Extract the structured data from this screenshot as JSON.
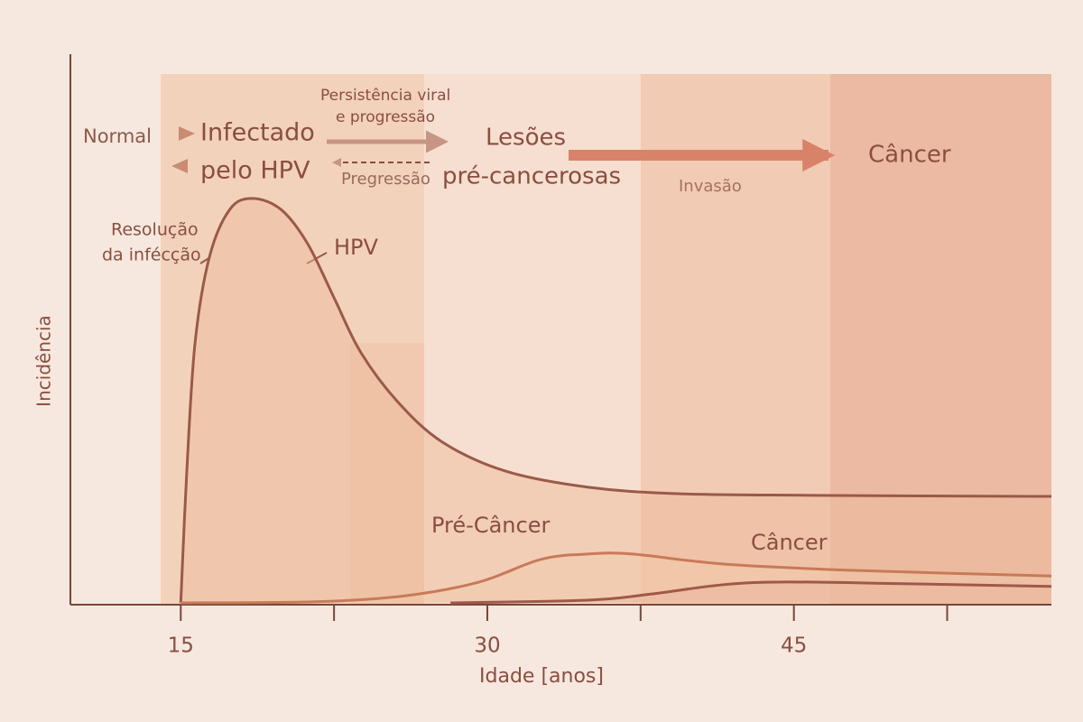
{
  "chart_data": {
    "type": "line",
    "x_label": "Idade [anos]",
    "y_label": "Incidência",
    "xlim": [
      9.6,
      57.6
    ],
    "ylim": [
      0,
      100
    ],
    "xticks": [
      15,
      {
        "value": 22.5,
        "label": null
      },
      30,
      {
        "value": 37.5,
        "label": null
      },
      45,
      {
        "value": 52.5,
        "label": null
      }
    ],
    "annotations": [
      "Normal",
      "Infectado",
      "pelo HPV",
      "Persistência viral",
      "e progressão",
      "Lesões",
      "Pregressão",
      "pré-cancerosas",
      "Invasão",
      "Câncer",
      "Resolução",
      "da infécção"
    ],
    "series": [
      {
        "name": "HPV",
        "color": "#9a5a48",
        "x": [
          15,
          15.3,
          15.7,
          16.4,
          17.4,
          18.5,
          19.9,
          21.2,
          22.5,
          23.8,
          25.6,
          27.8,
          30.9,
          34.9,
          39.3,
          45.9,
          57.6
        ],
        "values": [
          0,
          24.3,
          47.4,
          63,
          71.7,
          73.7,
          71.7,
          65.5,
          55.6,
          45.7,
          36.7,
          29.3,
          24,
          21.1,
          19.9,
          19.6,
          19.4
        ]
      },
      {
        "name": "Pré-Câncer",
        "color": "#c87a58",
        "x": [
          15,
          21.6,
          26.0,
          29.6,
          32.6,
          34.9,
          37.1,
          41.5,
          48.1,
          57.6
        ],
        "values": [
          0,
          0.2,
          1.3,
          3.8,
          7.9,
          8.9,
          8.9,
          7.1,
          5.9,
          4.9
        ]
      },
      {
        "name": "Câncer",
        "color": "#a0584a",
        "x": [
          28.2,
          34.9,
          38.0,
          41.5,
          44.6,
          50.3,
          57.6
        ],
        "values": [
          0,
          0.5,
          1.6,
          3.3,
          3.8,
          3.5,
          3.0
        ]
      }
    ]
  }
}
